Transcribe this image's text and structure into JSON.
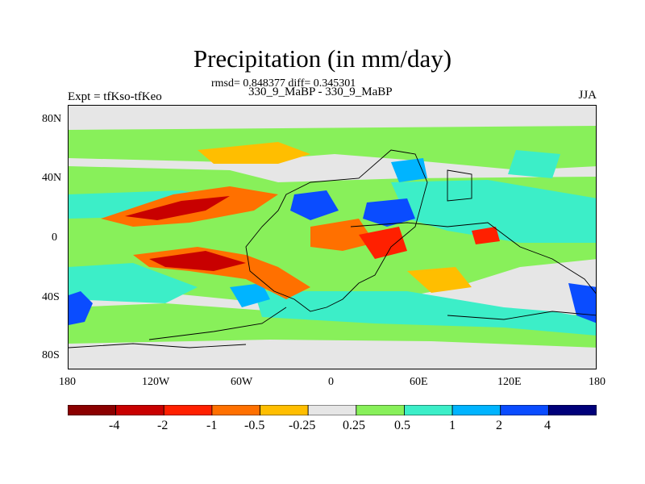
{
  "title": "Precipitation (in mm/day)",
  "stats": "rmsd= 0.848377 diff= 0.345301",
  "experiment": "330_9_MaBP - 330_9_MaBP",
  "expt_label": "Expt = tfKso-tfKeo",
  "season": "JJA",
  "y_ticks": [
    "80N",
    "40N",
    "0",
    "40S",
    "80S"
  ],
  "x_ticks": [
    "180",
    "120W",
    "60W",
    "0",
    "60E",
    "120E",
    "180"
  ],
  "colorbar": {
    "colors": [
      "#8b0000",
      "#c80000",
      "#ff2000",
      "#ff7000",
      "#ffbe00",
      "#e6e6e6",
      "#88f05a",
      "#3ceec8",
      "#00b4ff",
      "#0a4cff",
      "#00007a"
    ],
    "labels": [
      "-4",
      "-2",
      "-1",
      "-0.5",
      "-0.25",
      "0.25",
      "0.5",
      "1",
      "2",
      "4"
    ]
  }
}
